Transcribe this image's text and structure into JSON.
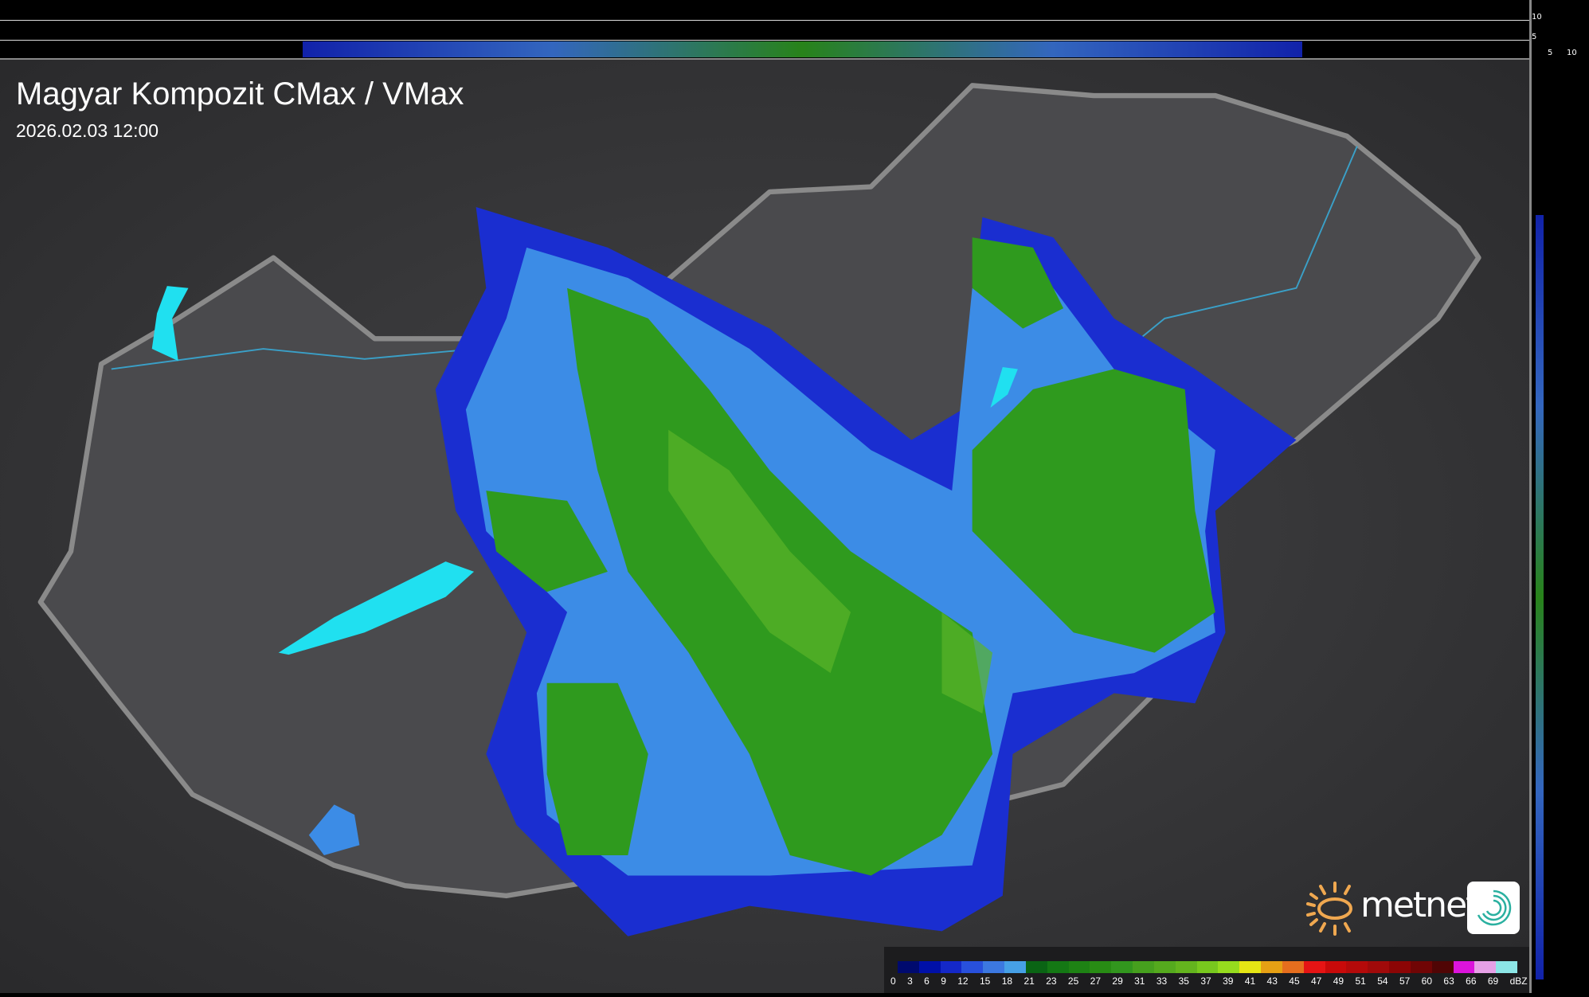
{
  "header": {
    "title": "Magyar Kompozit CMax / VMax",
    "timestamp": "2026.02.03 12:00"
  },
  "cross_section": {
    "top_ticks": [
      "10",
      "5"
    ],
    "right_ticks": [
      "5",
      "10"
    ]
  },
  "legend": {
    "unit": "dBZ",
    "labels": [
      "0",
      "3",
      "6",
      "9",
      "12",
      "15",
      "18",
      "21",
      "23",
      "25",
      "27",
      "29",
      "31",
      "33",
      "35",
      "37",
      "39",
      "41",
      "43",
      "45",
      "47",
      "49",
      "51",
      "54",
      "57",
      "60",
      "63",
      "66",
      "69"
    ],
    "colors": [
      "#000a6e",
      "#0010a8",
      "#1428c8",
      "#2850dc",
      "#3c78e0",
      "#46a0e6",
      "#0a6414",
      "#147814",
      "#1e8214",
      "#288c14",
      "#32961e",
      "#46a01e",
      "#55aa1e",
      "#64b41e",
      "#78c81e",
      "#96dc1e",
      "#e6e614",
      "#e6a014",
      "#e66e1e",
      "#e61414",
      "#c80a0a",
      "#b40a0a",
      "#a00a0a",
      "#8c0505",
      "#700505",
      "#500505",
      "#dc14dc",
      "#e6a0e6",
      "#8ce6e6"
    ]
  },
  "logo": {
    "brand": "metnet",
    "sun_color": "#f0a850"
  },
  "colors": {
    "border": "#8a8a8a",
    "river": "#3aa0c8",
    "lake": "#20e0f0",
    "terrain": "#3a3a3c"
  }
}
